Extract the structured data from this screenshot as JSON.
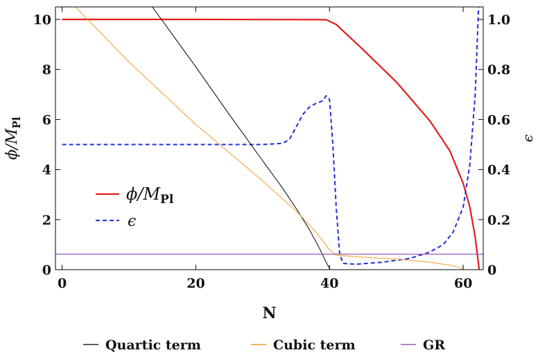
{
  "chart_data": {
    "type": "line",
    "xlabel": "N",
    "ylabel_left": "ϕ/M",
    "ylabel_left_sub": "Pl",
    "ylabel_right": "ϵ",
    "xlim": [
      -1,
      63
    ],
    "ylim_left": [
      0,
      10.5
    ],
    "ylim_right": [
      0,
      1.05
    ],
    "x_ticks": [
      0,
      20,
      40,
      60
    ],
    "x_tick_labels": [
      "0",
      "20",
      "40",
      "60"
    ],
    "y_left_ticks": [
      0,
      2,
      4,
      6,
      8,
      10
    ],
    "y_left_tick_labels": [
      "0",
      "2",
      "4",
      "6",
      "8",
      "10"
    ],
    "y_right_ticks": [
      0,
      0.2,
      0.4,
      0.6,
      0.8,
      1.0
    ],
    "y_right_tick_labels": [
      "0",
      "0.2",
      "0.4",
      "0.6",
      "0.8",
      "1.0"
    ],
    "grid": false,
    "legend_inner": [
      {
        "label": "ϕ/M",
        "label_sub": "Pl",
        "color": "#e31a1c",
        "style": "solid"
      },
      {
        "label": "ϵ",
        "color": "#1f2fd6",
        "style": "dashed"
      }
    ],
    "legend_bottom": [
      {
        "label": "Quartic term",
        "color": "#000000"
      },
      {
        "label": "Cubic term",
        "color": "#f39c2f"
      },
      {
        "label": "GR",
        "color": "#9b59b6"
      }
    ],
    "series": [
      {
        "id": "phi",
        "axis": "left",
        "color": "#e31a1c",
        "width": 2.2,
        "dash": "",
        "points": [
          [
            0,
            10
          ],
          [
            20,
            10
          ],
          [
            39.5,
            9.99
          ],
          [
            41,
            9.8
          ],
          [
            45,
            8.8
          ],
          [
            50,
            7.5
          ],
          [
            55,
            5.95
          ],
          [
            58,
            4.75
          ],
          [
            60,
            3.45
          ],
          [
            61,
            2.5
          ],
          [
            61.8,
            1.3
          ],
          [
            62.3,
            0.2
          ],
          [
            62.4,
            0
          ]
        ]
      },
      {
        "id": "epsilon",
        "axis": "right",
        "color": "#1f2fd6",
        "width": 2,
        "dash": "6,4",
        "points": [
          [
            0,
            0.5
          ],
          [
            30,
            0.5
          ],
          [
            33,
            0.505
          ],
          [
            34,
            0.52
          ],
          [
            35,
            0.57
          ],
          [
            36,
            0.62
          ],
          [
            37,
            0.65
          ],
          [
            38,
            0.665
          ],
          [
            39,
            0.675
          ],
          [
            39.5,
            0.695
          ],
          [
            40,
            0.68
          ],
          [
            40.5,
            0.5
          ],
          [
            41,
            0.25
          ],
          [
            41.5,
            0.07
          ],
          [
            42,
            0.025
          ],
          [
            44,
            0.022
          ],
          [
            48,
            0.03
          ],
          [
            52,
            0.045
          ],
          [
            55,
            0.07
          ],
          [
            57,
            0.1
          ],
          [
            58.5,
            0.15
          ],
          [
            60,
            0.25
          ],
          [
            61,
            0.42
          ],
          [
            61.8,
            0.7
          ],
          [
            62.3,
            1.05
          ]
        ]
      },
      {
        "id": "quartic",
        "axis": "left",
        "color": "#000000",
        "width": 1,
        "dash": "",
        "points": [
          [
            13.5,
            10.5
          ],
          [
            20,
            8.1
          ],
          [
            25,
            6.2
          ],
          [
            30,
            4.35
          ],
          [
            33,
            3.25
          ],
          [
            35,
            2.45
          ],
          [
            37,
            1.6
          ],
          [
            38.5,
            0.85
          ],
          [
            39.5,
            0.3
          ],
          [
            40.1,
            0
          ]
        ]
      },
      {
        "id": "cubic",
        "axis": "left",
        "color": "#f39c2f",
        "width": 1,
        "dash": "",
        "points": [
          [
            2,
            10.5
          ],
          [
            10,
            8.3
          ],
          [
            20,
            5.8
          ],
          [
            30,
            3.55
          ],
          [
            35,
            2.35
          ],
          [
            38,
            1.5
          ],
          [
            40,
            0.8
          ],
          [
            41,
            0.58
          ],
          [
            45,
            0.5
          ],
          [
            50,
            0.42
          ],
          [
            55,
            0.3
          ],
          [
            58,
            0.18
          ],
          [
            60,
            0.05
          ]
        ]
      },
      {
        "id": "gr",
        "axis": "left",
        "color": "#9b59b6",
        "width": 1.2,
        "dash": "",
        "points": [
          [
            -1,
            0.62
          ],
          [
            63,
            0.62
          ]
        ]
      }
    ]
  }
}
